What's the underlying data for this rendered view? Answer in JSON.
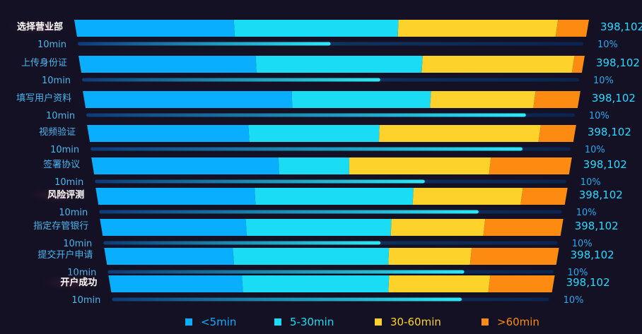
{
  "chart_data": {
    "type": "bar",
    "stacked": true,
    "orientation": "horizontal",
    "categories": [
      "选择营业部",
      "上传身份证",
      "填写用户资料",
      "视频验证",
      "签署协议",
      "风险评测",
      "指定存管银行",
      "提交开户申请",
      "开户成功"
    ],
    "highlighted": [
      "选择营业部",
      "风险评测",
      "开户成功"
    ],
    "series": [
      {
        "name": "<5min",
        "color": "#09aefe",
        "values": [
          31,
          35,
          42,
          32,
          37,
          32,
          28,
          28,
          29
        ]
      },
      {
        "name": "5-30min",
        "color": "#1adcf4",
        "values": [
          32,
          33,
          28,
          26,
          14,
          32,
          28,
          34,
          32
        ]
      },
      {
        "name": "30-60min",
        "color": "#fdd22a",
        "values": [
          31,
          30,
          21,
          32,
          28,
          22,
          18,
          18,
          22
        ]
      },
      {
        "name": ">60min",
        "color": "#fd8a11",
        "values": [
          6,
          2,
          9,
          7,
          16,
          9,
          15,
          19,
          14
        ]
      }
    ],
    "counts": [
      "398,102",
      "398,102",
      "398,102",
      "398,102",
      "398,102",
      "398,102",
      "398,102",
      "398,102",
      "398,102"
    ],
    "progress_label": "10min",
    "progress_values": [
      0.5,
      0.6,
      0.9,
      0.9,
      0.7,
      0.82,
      0.61,
      0.8,
      0.8
    ],
    "percent_labels": [
      "10%",
      "10%",
      "10%",
      "10%",
      "10%",
      "10%",
      "10%",
      "10%",
      "10%"
    ],
    "legend_position": "bottom"
  }
}
